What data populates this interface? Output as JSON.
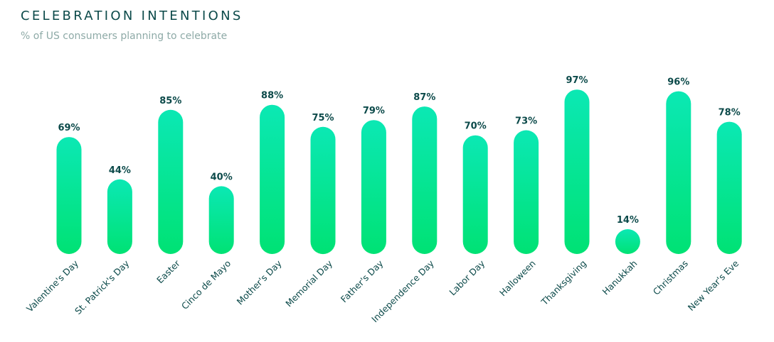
{
  "header": {
    "title": "CELEBRATION INTENTIONS",
    "subtitle": "% of US consumers planning to celebrate"
  },
  "chart_data": {
    "type": "bar",
    "title": "CELEBRATION INTENTIONS",
    "subtitle": "% of US consumers planning to celebrate",
    "categories": [
      "Valentine's Day",
      "St. Patrick's Day",
      "Easter",
      "Cinco de Mayo",
      "Mother's Day",
      "Memorial Day",
      "Father's Day",
      "Independence Day",
      "Labor Day",
      "Halloween",
      "Thanksgiving",
      "Hanukkah",
      "Christmas",
      "New Year's Eve"
    ],
    "values": [
      69,
      44,
      85,
      40,
      88,
      75,
      79,
      87,
      70,
      73,
      97,
      14,
      96,
      78
    ],
    "value_labels": [
      "69%",
      "44%",
      "85%",
      "40%",
      "88%",
      "75%",
      "79%",
      "87%",
      "70%",
      "73%",
      "97%",
      "14%",
      "96%",
      "78%"
    ],
    "ylim": [
      0,
      100
    ],
    "grid": false,
    "colors": {
      "bar_top": "#0be8b4",
      "bar_bottom": "#00e274",
      "label": "#0c4a4a"
    }
  }
}
